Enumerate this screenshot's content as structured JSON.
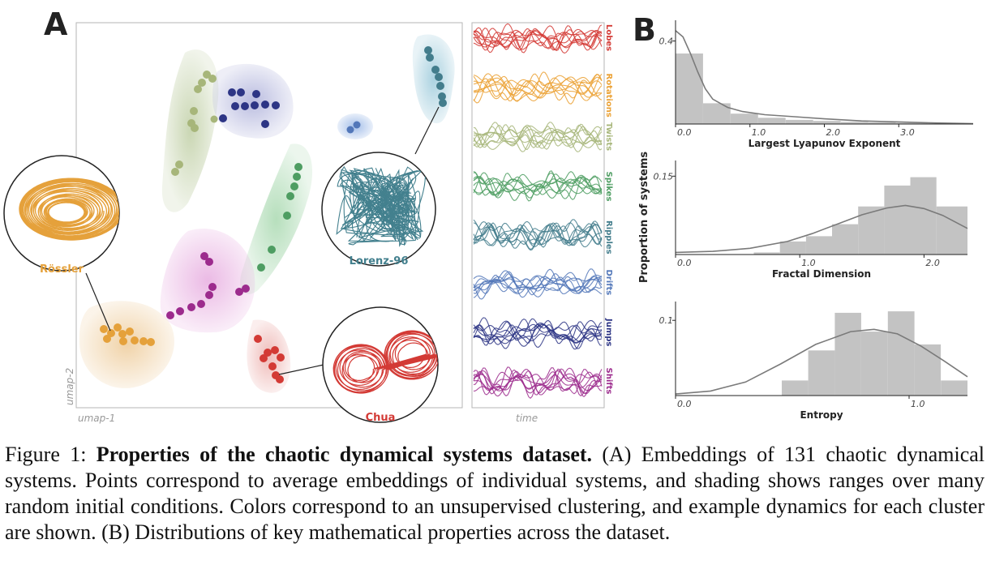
{
  "panel_a": {
    "label": "A",
    "axis_x": "umap-1",
    "axis_y": "umap-2",
    "time_label": "time",
    "systems": [
      {
        "name": "Rössler",
        "color": "#e5a13b"
      },
      {
        "name": "Lorenz-96",
        "color": "#43808e"
      },
      {
        "name": "Chua",
        "color": "#d33a35"
      }
    ],
    "clusters": [
      {
        "name": "Lobes",
        "color": "#d33a35"
      },
      {
        "name": "Rotations",
        "color": "#eba134"
      },
      {
        "name": "Twists",
        "color": "#a7b67a"
      },
      {
        "name": "Spikes",
        "color": "#4e9d62"
      },
      {
        "name": "Ripples",
        "color": "#437d8c"
      },
      {
        "name": "Drifts",
        "color": "#5277b9"
      },
      {
        "name": "Jumps",
        "color": "#2d3585"
      },
      {
        "name": "Shifts",
        "color": "#9c2b8d"
      }
    ]
  },
  "panel_b": {
    "label": "B",
    "y_label": "Proportion of systems"
  },
  "chart_data": [
    {
      "type": "bar",
      "xlabel": "Largest Lyapunov Exponent",
      "xlim": [
        0.0,
        4.0
      ],
      "ylim": [
        0,
        0.5
      ],
      "x_ticks": [
        "0.0",
        "1.0",
        "2.0",
        "3.0"
      ],
      "x_tick_values": [
        0.0,
        1.0,
        2.0,
        3.0
      ],
      "y_ticks": [
        "0.4"
      ],
      "y_tick_values": [
        0.4
      ],
      "bin_edges": [
        0.0,
        0.37,
        0.74,
        1.11,
        1.48,
        1.85,
        2.22,
        2.59,
        2.96,
        3.33,
        3.7,
        4.0
      ],
      "values": [
        0.34,
        0.1,
        0.05,
        0.03,
        0.02,
        0.015,
        0.01,
        0.008,
        0.005,
        0.004,
        0.003
      ],
      "kde": [
        [
          0.0,
          0.45
        ],
        [
          0.1,
          0.42
        ],
        [
          0.2,
          0.34
        ],
        [
          0.3,
          0.25
        ],
        [
          0.4,
          0.17
        ],
        [
          0.5,
          0.12
        ],
        [
          0.7,
          0.08
        ],
        [
          0.9,
          0.06
        ],
        [
          1.2,
          0.045
        ],
        [
          1.6,
          0.035
        ],
        [
          2.0,
          0.025
        ],
        [
          2.5,
          0.015
        ],
        [
          3.0,
          0.01
        ],
        [
          3.5,
          0.005
        ],
        [
          4.0,
          0.002
        ]
      ]
    },
    {
      "type": "bar",
      "xlabel": "Fractal Dimension",
      "xlim": [
        0.0,
        2.35
      ],
      "ylim": [
        0,
        0.18
      ],
      "x_ticks": [
        "0.0",
        "1.0",
        "2.0"
      ],
      "x_tick_values": [
        0.0,
        1.0,
        2.0
      ],
      "y_ticks": [
        "0.15"
      ],
      "y_tick_values": [
        0.15
      ],
      "bin_edges": [
        0.0,
        0.21,
        0.42,
        0.63,
        0.84,
        1.05,
        1.26,
        1.47,
        1.68,
        1.89,
        2.1,
        2.35
      ],
      "values": [
        0.0,
        0.0,
        0.0,
        0.004,
        0.025,
        0.035,
        0.058,
        0.092,
        0.132,
        0.148,
        0.092
      ],
      "kde": [
        [
          0.0,
          0.004
        ],
        [
          0.3,
          0.006
        ],
        [
          0.6,
          0.012
        ],
        [
          0.9,
          0.025
        ],
        [
          1.1,
          0.04
        ],
        [
          1.3,
          0.058
        ],
        [
          1.5,
          0.076
        ],
        [
          1.7,
          0.089
        ],
        [
          1.85,
          0.094
        ],
        [
          2.0,
          0.088
        ],
        [
          2.15,
          0.075
        ],
        [
          2.35,
          0.05
        ]
      ]
    },
    {
      "type": "bar",
      "xlabel": "Entropy",
      "xlim": [
        0.0,
        1.25
      ],
      "ylim": [
        0,
        0.125
      ],
      "x_ticks": [
        "0.0",
        "1.0"
      ],
      "x_tick_values": [
        0.0,
        1.0
      ],
      "y_ticks": [
        "0.1"
      ],
      "y_tick_values": [
        0.1
      ],
      "bin_edges": [
        0.0,
        0.114,
        0.227,
        0.341,
        0.455,
        0.568,
        0.682,
        0.795,
        0.909,
        1.023,
        1.136,
        1.25
      ],
      "values": [
        0.0,
        0.0,
        0.0,
        0.0,
        0.02,
        0.06,
        0.11,
        0.085,
        0.112,
        0.068,
        0.02
      ],
      "kde": [
        [
          0.0,
          0.002
        ],
        [
          0.15,
          0.006
        ],
        [
          0.3,
          0.018
        ],
        [
          0.45,
          0.042
        ],
        [
          0.6,
          0.068
        ],
        [
          0.75,
          0.085
        ],
        [
          0.85,
          0.088
        ],
        [
          0.95,
          0.082
        ],
        [
          1.05,
          0.066
        ],
        [
          1.15,
          0.046
        ],
        [
          1.25,
          0.025
        ]
      ]
    }
  ],
  "caption": {
    "prefix": "Figure 1: ",
    "title": "Properties of the chaotic dynamical systems dataset.",
    "text": " (A) Embeddings of 131 chaotic dynamical systems. Points correspond to average embeddings of individual systems, and shading shows ranges over many random initial conditions. Colors correspond to an unsupervised clustering, and example dynamics for each cluster are shown. (B) Distributions of key mathematical properties across the dataset."
  }
}
